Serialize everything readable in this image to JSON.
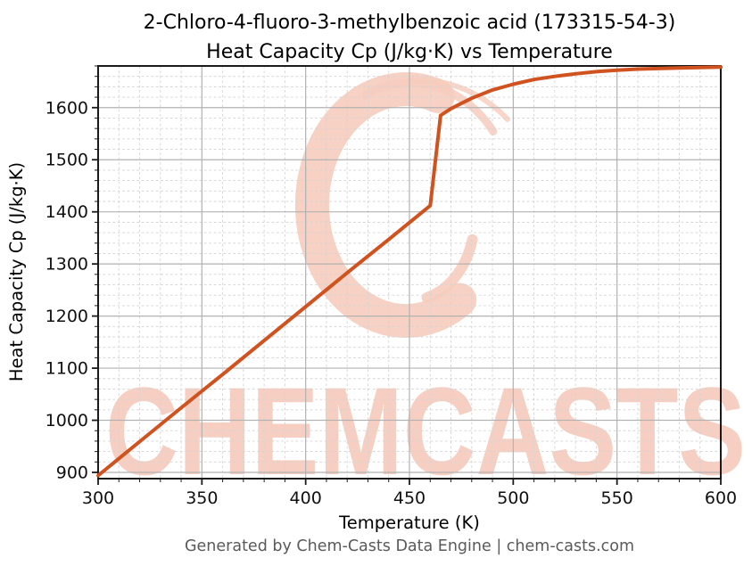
{
  "figure": {
    "title_line1": "2-Chloro-4-fluoro-3-methylbenzoic acid (173315-54-3)",
    "title_line2": "Heat Capacity Cp (J/kg·K) vs Temperature",
    "footer": "Generated by Chem-Casts Data Engine | chem-casts.com"
  },
  "watermark": {
    "text": "CHEMCASTS",
    "logo": "brush-stroke-c-swirl",
    "color": "#f6ccbd"
  },
  "chart_data": {
    "type": "line",
    "title": "2-Chloro-4-fluoro-3-methylbenzoic acid (173315-54-3) Heat Capacity Cp (J/kg·K) vs Temperature",
    "xlabel": "Temperature (K)",
    "ylabel": "Heat Capacity Cp (J/kg·K)",
    "xlim": [
      300,
      600
    ],
    "ylim": [
      888,
      1680
    ],
    "x_major_ticks": [
      300,
      350,
      400,
      450,
      500,
      550,
      600
    ],
    "x_minor_step": 10,
    "y_major_ticks": [
      900,
      1000,
      1100,
      1200,
      1300,
      1400,
      1500,
      1600
    ],
    "y_minor_step": 20,
    "grid": {
      "major": "solid",
      "minor": "dashed"
    },
    "legend_position": "none",
    "series": [
      {
        "name": "Heat Capacity Cp (J/kg·K)",
        "color": "#d0521f",
        "line_width": 4,
        "points": [
          [
            300,
            894
          ],
          [
            320,
            959
          ],
          [
            340,
            1024
          ],
          [
            360,
            1088
          ],
          [
            380,
            1153
          ],
          [
            400,
            1218
          ],
          [
            420,
            1283
          ],
          [
            440,
            1347
          ],
          [
            460,
            1412
          ],
          [
            465,
            1585
          ],
          [
            470,
            1598
          ],
          [
            480,
            1618
          ],
          [
            490,
            1634
          ],
          [
            500,
            1645
          ],
          [
            510,
            1654
          ],
          [
            520,
            1660
          ],
          [
            530,
            1665
          ],
          [
            540,
            1669
          ],
          [
            550,
            1672
          ],
          [
            560,
            1674
          ],
          [
            570,
            1675
          ],
          [
            580,
            1676
          ],
          [
            590,
            1677
          ],
          [
            600,
            1678
          ]
        ]
      }
    ]
  }
}
